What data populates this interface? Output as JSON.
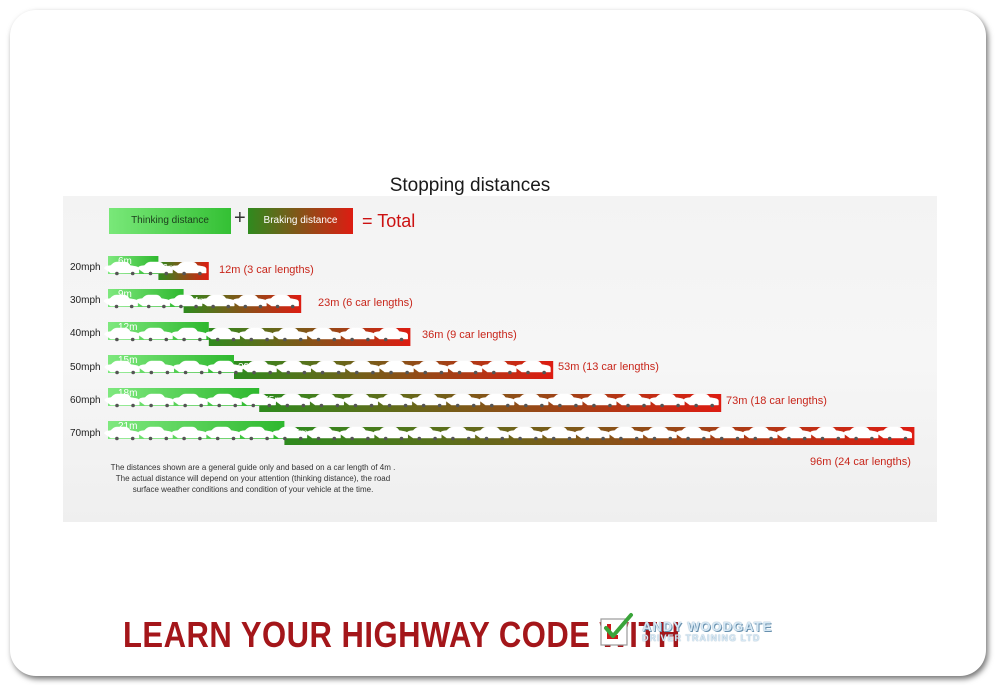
{
  "chart_data": {
    "type": "bar",
    "title": "Stopping distances",
    "legend": {
      "thinking": "Thinking distance",
      "plus": "+",
      "braking": "Braking distance",
      "total": "= Total"
    },
    "categories": [
      "20mph",
      "30mph",
      "40mph",
      "50mph",
      "60mph",
      "70mph"
    ],
    "series": [
      {
        "name": "Thinking distance",
        "values": [
          6,
          9,
          12,
          15,
          18,
          21
        ],
        "labels": [
          "6m",
          "9m",
          "12m",
          "15m",
          "18m",
          "21m"
        ]
      },
      {
        "name": "Braking distance",
        "values": [
          6,
          14,
          24,
          38,
          55,
          75
        ],
        "labels": [
          "6m",
          "14m",
          "24m",
          "38m",
          "55m",
          "75m"
        ]
      }
    ],
    "totals": [
      12,
      23,
      36,
      53,
      73,
      96
    ],
    "total_labels": [
      "12m (3 car lengths)",
      "23m (6 car lengths)",
      "36m (9 car lengths)",
      "53m (13 car lengths)",
      "73m (18 car lengths)",
      "96m (24 car lengths)"
    ],
    "car_lengths": [
      3,
      6,
      9,
      13,
      18,
      24
    ],
    "colors": {
      "thinking_start": "#7ee87e",
      "thinking_end": "#2eb82e",
      "braking_start": "#2e8b1e",
      "braking_end": "#dd1c12",
      "label": "#c8261b"
    },
    "stacked": true,
    "orientation": "horizontal",
    "grid": false
  },
  "footnote": "The distances shown are a general guide only and based on a car length of 4m . The actual distance will depend on your attention (thinking distance), the road surface weather conditions and condition of your vehicle at the time.",
  "banner": {
    "text": "LEARN YOUR HIGHWAY CODE WITH",
    "logo_name": "ANDY WOODGATE",
    "logo_sub": "DRIVER TRAINING LTD",
    "logo_icon": "l-plate-check-icon"
  }
}
